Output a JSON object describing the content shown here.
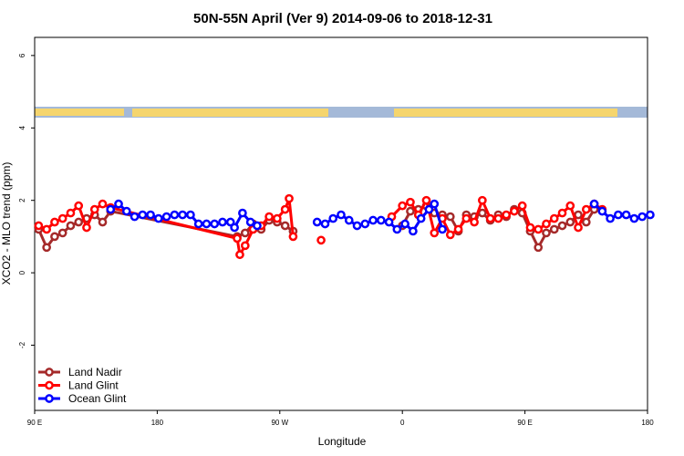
{
  "chart_data": {
    "type": "line",
    "title": "50N-55N April (Ver 9)   2014-09-06 to 2018-12-31",
    "xlabel": "Longitude",
    "ylabel": "XCO2 - MLO trend (ppm)",
    "xlim": [
      0,
      460
    ],
    "ylim": [
      -3.8,
      6.5
    ],
    "x_ticks": [
      {
        "x": 0,
        "label": "90 E"
      },
      {
        "x": 92,
        "label": "180"
      },
      {
        "x": 184,
        "label": "90 W"
      },
      {
        "x": 276,
        "label": "0"
      },
      {
        "x": 368,
        "label": "90 E"
      },
      {
        "x": 460,
        "label": "180"
      }
    ],
    "y_ticks": [
      {
        "y": -2,
        "label": "-2"
      },
      {
        "y": 0,
        "label": "0"
      },
      {
        "y": 2,
        "label": "2"
      },
      {
        "y": 4,
        "label": "4"
      },
      {
        "y": 6,
        "label": "6"
      }
    ],
    "land_ocean_band": {
      "y_bottom": 4.2,
      "y_top": 4.5,
      "land_color": "#f5d56e",
      "ocean_color": "#a4b9d8"
    },
    "legend_position": "bottom-left",
    "series": [
      {
        "name": "Land Nadir",
        "color": "#a52a2a",
        "points": [
          [
            3,
            1.2
          ],
          [
            9,
            0.7
          ],
          [
            15,
            1.0
          ],
          [
            21,
            1.1
          ],
          [
            27,
            1.3
          ],
          [
            33,
            1.4
          ],
          [
            39,
            1.5
          ],
          [
            45,
            1.6
          ],
          [
            51,
            1.4
          ],
          [
            57,
            1.7
          ],
          [
            152,
            1.0
          ],
          [
            158,
            1.1
          ],
          [
            164,
            1.35
          ],
          [
            170,
            1.2
          ],
          [
            176,
            1.45
          ],
          [
            182,
            1.4
          ],
          [
            188,
            1.3
          ],
          [
            194,
            1.15
          ],
          null,
          [
            276,
            1.3
          ],
          [
            282,
            1.7
          ],
          [
            288,
            1.75
          ],
          [
            294,
            1.85
          ],
          [
            300,
            1.65
          ],
          [
            306,
            1.6
          ],
          [
            312,
            1.55
          ],
          [
            318,
            1.15
          ],
          [
            324,
            1.6
          ],
          [
            330,
            1.55
          ],
          [
            336,
            1.65
          ],
          [
            342,
            1.45
          ],
          [
            348,
            1.6
          ],
          [
            354,
            1.55
          ],
          [
            360,
            1.75
          ],
          [
            366,
            1.65
          ],
          [
            372,
            1.15
          ],
          [
            378,
            0.7
          ],
          [
            384,
            1.1
          ],
          [
            390,
            1.2
          ],
          [
            396,
            1.3
          ],
          [
            402,
            1.4
          ],
          [
            408,
            1.6
          ],
          [
            414,
            1.4
          ],
          [
            420,
            1.75
          ]
        ]
      },
      {
        "name": "Land Glint",
        "color": "#ff0000",
        "points": [
          [
            3,
            1.3
          ],
          [
            9,
            1.2
          ],
          [
            15,
            1.4
          ],
          [
            21,
            1.5
          ],
          [
            27,
            1.65
          ],
          [
            33,
            1.85
          ],
          [
            39,
            1.25
          ],
          [
            45,
            1.75
          ],
          [
            51,
            1.9
          ],
          [
            57,
            1.8
          ],
          [
            152,
            0.95
          ],
          [
            154,
            0.5
          ],
          [
            158,
            0.75
          ],
          [
            164,
            1.2
          ],
          [
            170,
            1.3
          ],
          [
            176,
            1.55
          ],
          [
            182,
            1.5
          ],
          [
            188,
            1.75
          ],
          [
            191,
            2.05
          ],
          [
            194,
            1.0
          ],
          null,
          [
            268,
            1.55
          ],
          [
            276,
            1.85
          ],
          [
            282,
            1.95
          ],
          [
            288,
            1.6
          ],
          [
            294,
            2.0
          ],
          [
            300,
            1.1
          ],
          [
            306,
            1.5
          ],
          [
            312,
            1.05
          ],
          [
            318,
            1.2
          ],
          [
            324,
            1.5
          ],
          [
            330,
            1.4
          ],
          [
            336,
            2.0
          ],
          [
            342,
            1.5
          ],
          [
            348,
            1.5
          ],
          [
            354,
            1.6
          ],
          [
            360,
            1.7
          ],
          [
            366,
            1.85
          ],
          [
            372,
            1.25
          ],
          [
            378,
            1.2
          ],
          [
            384,
            1.35
          ],
          [
            390,
            1.5
          ],
          [
            396,
            1.65
          ],
          [
            402,
            1.85
          ],
          [
            408,
            1.25
          ],
          [
            414,
            1.75
          ],
          [
            420,
            1.9
          ],
          [
            426,
            1.75
          ],
          null,
          [
            215,
            0.9
          ]
        ]
      },
      {
        "name": "Ocean Glint",
        "color": "#0000ff",
        "points": [
          [
            57,
            1.75
          ],
          [
            63,
            1.9
          ],
          [
            69,
            1.7
          ],
          [
            75,
            1.55
          ],
          [
            81,
            1.6
          ],
          [
            87,
            1.6
          ],
          [
            93,
            1.5
          ],
          [
            99,
            1.55
          ],
          [
            105,
            1.6
          ],
          [
            111,
            1.6
          ],
          [
            117,
            1.6
          ],
          [
            123,
            1.35
          ],
          [
            129,
            1.35
          ],
          [
            135,
            1.35
          ],
          [
            141,
            1.4
          ],
          [
            147,
            1.4
          ],
          [
            150,
            1.25
          ],
          [
            156,
            1.65
          ],
          [
            162,
            1.4
          ],
          [
            167,
            1.3
          ],
          null,
          [
            212,
            1.4
          ],
          [
            218,
            1.35
          ],
          [
            224,
            1.5
          ],
          [
            230,
            1.6
          ],
          [
            236,
            1.45
          ],
          [
            242,
            1.3
          ],
          [
            248,
            1.35
          ],
          [
            254,
            1.45
          ],
          [
            260,
            1.45
          ],
          [
            266,
            1.4
          ],
          [
            272,
            1.2
          ],
          [
            278,
            1.35
          ],
          [
            284,
            1.15
          ],
          [
            290,
            1.5
          ],
          [
            296,
            1.75
          ],
          [
            300,
            1.9
          ],
          [
            306,
            1.2
          ],
          null,
          [
            420,
            1.9
          ],
          [
            426,
            1.7
          ],
          [
            432,
            1.5
          ],
          [
            438,
            1.6
          ],
          [
            444,
            1.6
          ],
          [
            450,
            1.5
          ],
          [
            456,
            1.55
          ],
          [
            462,
            1.6
          ]
        ]
      }
    ]
  }
}
